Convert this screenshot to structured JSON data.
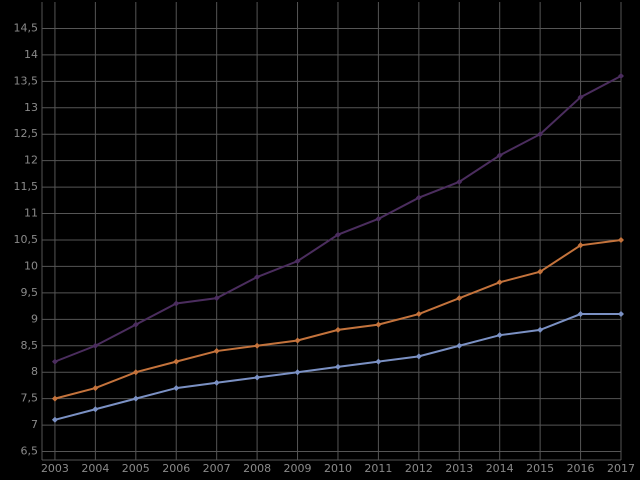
{
  "chart_data": {
    "type": "line",
    "x": [
      2003,
      2004,
      2005,
      2006,
      2007,
      2008,
      2009,
      2010,
      2011,
      2012,
      2013,
      2014,
      2015,
      2016,
      2017
    ],
    "series": [
      {
        "color": "#4b2d5e",
        "values": [
          8.2,
          8.5,
          8.9,
          9.3,
          9.4,
          9.8,
          10.1,
          10.6,
          10.9,
          11.3,
          11.6,
          12.1,
          12.5,
          13.2,
          13.6
        ]
      },
      {
        "color": "#c4733c",
        "values": [
          7.5,
          7.7,
          8.0,
          8.2,
          8.4,
          8.5,
          8.6,
          8.8,
          8.9,
          9.1,
          9.4,
          9.7,
          9.9,
          10.4,
          10.5
        ]
      },
      {
        "color": "#7b91c4",
        "values": [
          7.1,
          7.3,
          7.5,
          7.7,
          7.8,
          7.9,
          8.0,
          8.1,
          8.2,
          8.3,
          8.5,
          8.7,
          8.8,
          9.1,
          9.1
        ]
      }
    ],
    "xlim": [
      2002.68,
      2017
    ],
    "xticks": [
      2003,
      2004,
      2005,
      2006,
      2007,
      2008,
      2009,
      2010,
      2011,
      2012,
      2013,
      2014,
      2015,
      2016,
      2017
    ],
    "ylim": [
      6.34,
      15
    ],
    "yticks": [
      {
        "value": 6.5,
        "label": "6,5"
      },
      7,
      {
        "value": 7.5,
        "label": "7,5"
      },
      8,
      {
        "value": 8.5,
        "label": "8,5"
      },
      9,
      {
        "value": 9.5,
        "label": "9,5"
      },
      10,
      {
        "value": 10.5,
        "label": "10,5"
      },
      11,
      {
        "value": 11.5,
        "label": "11,5"
      },
      12,
      {
        "value": 12.5,
        "label": "12,5"
      },
      13,
      {
        "value": 13.5,
        "label": "13,5"
      },
      14,
      {
        "value": 14.5,
        "label": "14,5"
      }
    ],
    "grid": true
  }
}
